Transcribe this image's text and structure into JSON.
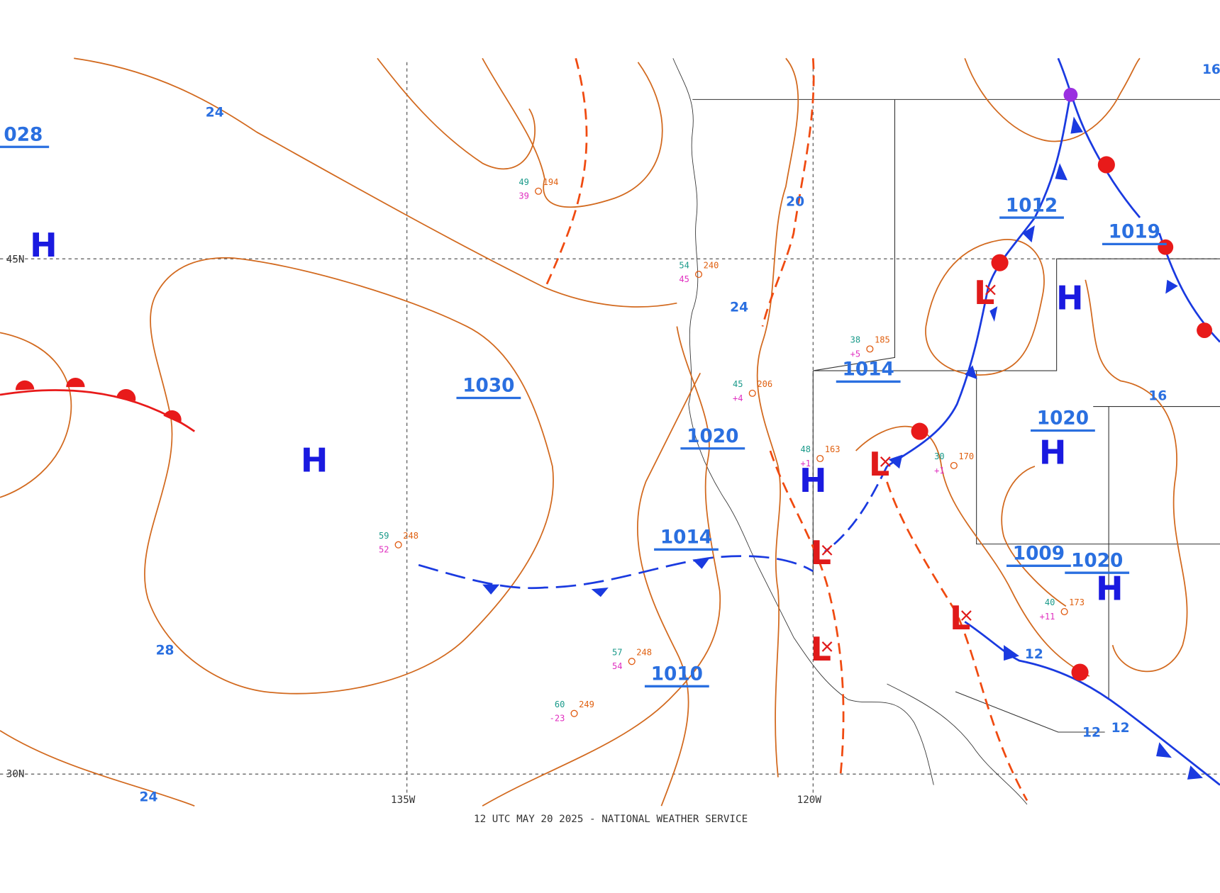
{
  "map": {
    "footer": "12 UTC MAY 20 2025 - NATIONAL WEATHER SERVICE",
    "grid_labels": [
      "45N",
      "30N",
      "135W",
      "120W"
    ],
    "pressure_labels": [
      "028",
      "1030",
      "1020",
      "1014",
      "1010",
      "1014",
      "1012",
      "1019",
      "1020",
      "1009",
      "1020"
    ],
    "isobar_labels": [
      "24",
      "24",
      "20",
      "28",
      "24",
      "16",
      "12",
      "12",
      "12",
      "16"
    ],
    "highs": [
      "H",
      "H",
      "H",
      "H",
      "H",
      "H"
    ],
    "lows": [
      "L",
      "L",
      "L",
      "L",
      "L"
    ],
    "stations": [
      {
        "temp": "59",
        "pressure": "248",
        "dew": "52"
      },
      {
        "temp": "57",
        "pressure": "248",
        "dew": "54"
      },
      {
        "temp": "60",
        "pressure": "249",
        "dew": "-23"
      },
      {
        "temp": "49",
        "pressure": "194",
        "dew": "39"
      },
      {
        "temp": "54",
        "pressure": "240",
        "dew": "45"
      },
      {
        "temp": "38",
        "pressure": "185",
        "dew": "+5"
      },
      {
        "temp": "30",
        "pressure": "170",
        "dew": "+1"
      },
      {
        "temp": "48",
        "pressure": "163",
        "dew": "+1"
      },
      {
        "temp": "40",
        "pressure": "173",
        "dew": "+11"
      },
      {
        "temp": "45",
        "pressure": "206",
        "dew": "+4"
      }
    ]
  }
}
